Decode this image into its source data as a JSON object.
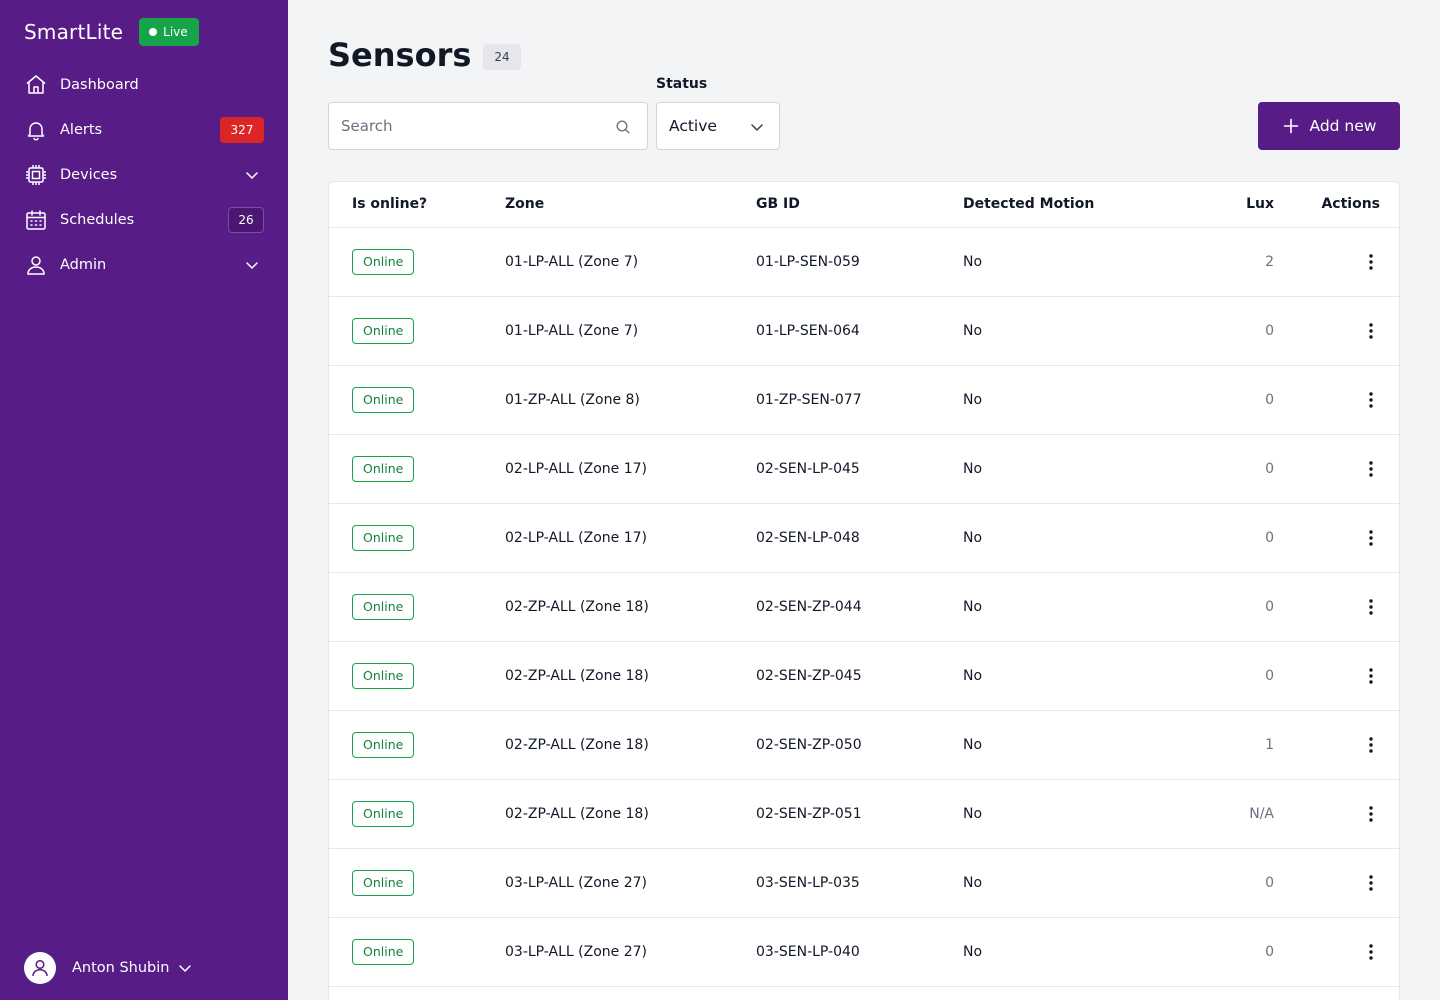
{
  "app": {
    "name": "SmartLite",
    "live_label": "Live"
  },
  "sidebar": {
    "items": [
      {
        "label": "Dashboard",
        "icon": "home-icon"
      },
      {
        "label": "Alerts",
        "icon": "bell-icon",
        "count": "327"
      },
      {
        "label": "Devices",
        "icon": "chip-icon"
      },
      {
        "label": "Schedules",
        "icon": "calendar-icon",
        "count": "26"
      },
      {
        "label": "Admin",
        "icon": "user-icon"
      }
    ],
    "user_name": "Anton Shubin"
  },
  "page": {
    "title": "Sensors",
    "count": "24"
  },
  "filters": {
    "search_placeholder": "Search",
    "search_value": "",
    "status_label": "Status",
    "status_value": "Active"
  },
  "add_button_label": "Add new",
  "table": {
    "headers": {
      "online": "Is online?",
      "zone": "Zone",
      "gb_id": "GB ID",
      "motion": "Detected Motion",
      "lux": "Lux",
      "actions": "Actions"
    },
    "rows": [
      {
        "status": "Online",
        "zone": "01-LP-ALL (Zone 7)",
        "gb_id": "01-LP-SEN-059",
        "motion": "No",
        "lux": "2"
      },
      {
        "status": "Online",
        "zone": "01-LP-ALL (Zone 7)",
        "gb_id": "01-LP-SEN-064",
        "motion": "No",
        "lux": "0"
      },
      {
        "status": "Online",
        "zone": "01-ZP-ALL (Zone 8)",
        "gb_id": "01-ZP-SEN-077",
        "motion": "No",
        "lux": "0"
      },
      {
        "status": "Online",
        "zone": "02-LP-ALL (Zone 17)",
        "gb_id": "02-SEN-LP-045",
        "motion": "No",
        "lux": "0"
      },
      {
        "status": "Online",
        "zone": "02-LP-ALL (Zone 17)",
        "gb_id": "02-SEN-LP-048",
        "motion": "No",
        "lux": "0"
      },
      {
        "status": "Online",
        "zone": "02-ZP-ALL (Zone 18)",
        "gb_id": "02-SEN-ZP-044",
        "motion": "No",
        "lux": "0"
      },
      {
        "status": "Online",
        "zone": "02-ZP-ALL (Zone 18)",
        "gb_id": "02-SEN-ZP-045",
        "motion": "No",
        "lux": "0"
      },
      {
        "status": "Online",
        "zone": "02-ZP-ALL (Zone 18)",
        "gb_id": "02-SEN-ZP-050",
        "motion": "No",
        "lux": "1"
      },
      {
        "status": "Online",
        "zone": "02-ZP-ALL (Zone 18)",
        "gb_id": "02-SEN-ZP-051",
        "motion": "No",
        "lux": "N/A"
      },
      {
        "status": "Online",
        "zone": "03-LP-ALL (Zone 27)",
        "gb_id": "03-SEN-LP-035",
        "motion": "No",
        "lux": "0"
      },
      {
        "status": "Online",
        "zone": "03-LP-ALL (Zone 27)",
        "gb_id": "03-SEN-LP-040",
        "motion": "No",
        "lux": "0"
      }
    ]
  }
}
